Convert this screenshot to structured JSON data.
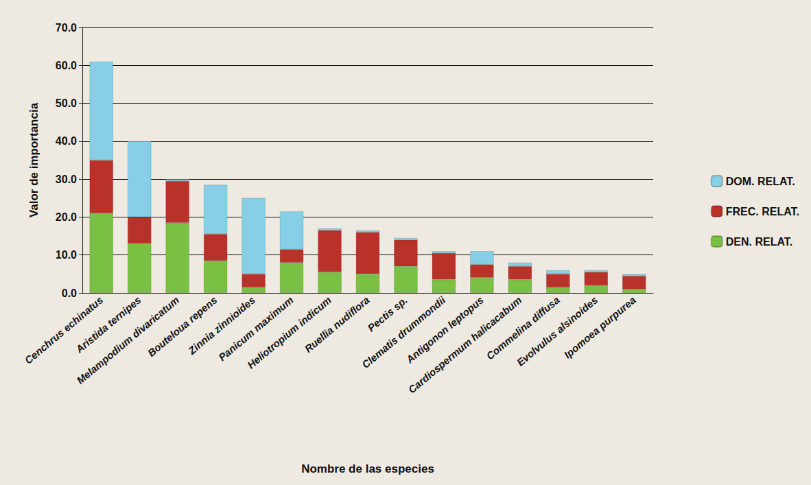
{
  "chart_data": {
    "type": "bar",
    "stacked": true,
    "x_label": "Nombre de las especies",
    "y_label": "Valor de importancia",
    "categories": [
      "Cenchrus echinatus",
      "Aristida ternipes",
      "Melampodium divaricatum",
      "Bouteloua repens",
      "Zinnia zinnioides",
      "Panicum maximum",
      "Heliotropium indicum",
      "Ruellia nudiflora",
      "Pectis sp.",
      "Clematis drummondii",
      "Antigonon leptopus",
      "Cardiospermum halicacabum",
      "Commelina diffusa",
      "Evolvulus alsinoides",
      "Ipomoea purpurea"
    ],
    "series": [
      {
        "name": "DEN. RELAT.",
        "color": "#7ac143",
        "values": [
          21,
          13,
          18.5,
          8.5,
          1.5,
          8,
          5.5,
          5,
          7,
          3.5,
          4,
          3.5,
          1.5,
          2,
          1
        ]
      },
      {
        "name": "FREC. RELAT.",
        "color": "#b8322a",
        "values": [
          14,
          7,
          11,
          7,
          3.5,
          3.5,
          11,
          11,
          7,
          7,
          3.5,
          3.5,
          3.5,
          3.5,
          3.5
        ]
      },
      {
        "name": "DOM. RELAT.",
        "color": "#86cfe6",
        "values": [
          26,
          20,
          0.5,
          13,
          20,
          10,
          0.5,
          0.5,
          0.5,
          0.5,
          3.5,
          1,
          1,
          0.5,
          0.5
        ]
      }
    ],
    "ylim": [
      0,
      70
    ],
    "yticks": [
      {
        "value": 0,
        "label": "0.0"
      },
      {
        "value": 10,
        "label": "10.0"
      },
      {
        "value": 20,
        "label": "20.0"
      },
      {
        "value": 30,
        "label": "30.0"
      },
      {
        "value": 40,
        "label": "40.0"
      },
      {
        "value": 50,
        "label": "50.0"
      },
      {
        "value": 60,
        "label": "60.0"
      },
      {
        "value": 70,
        "label": "70.0"
      }
    ],
    "grid": true,
    "legend": "right"
  }
}
